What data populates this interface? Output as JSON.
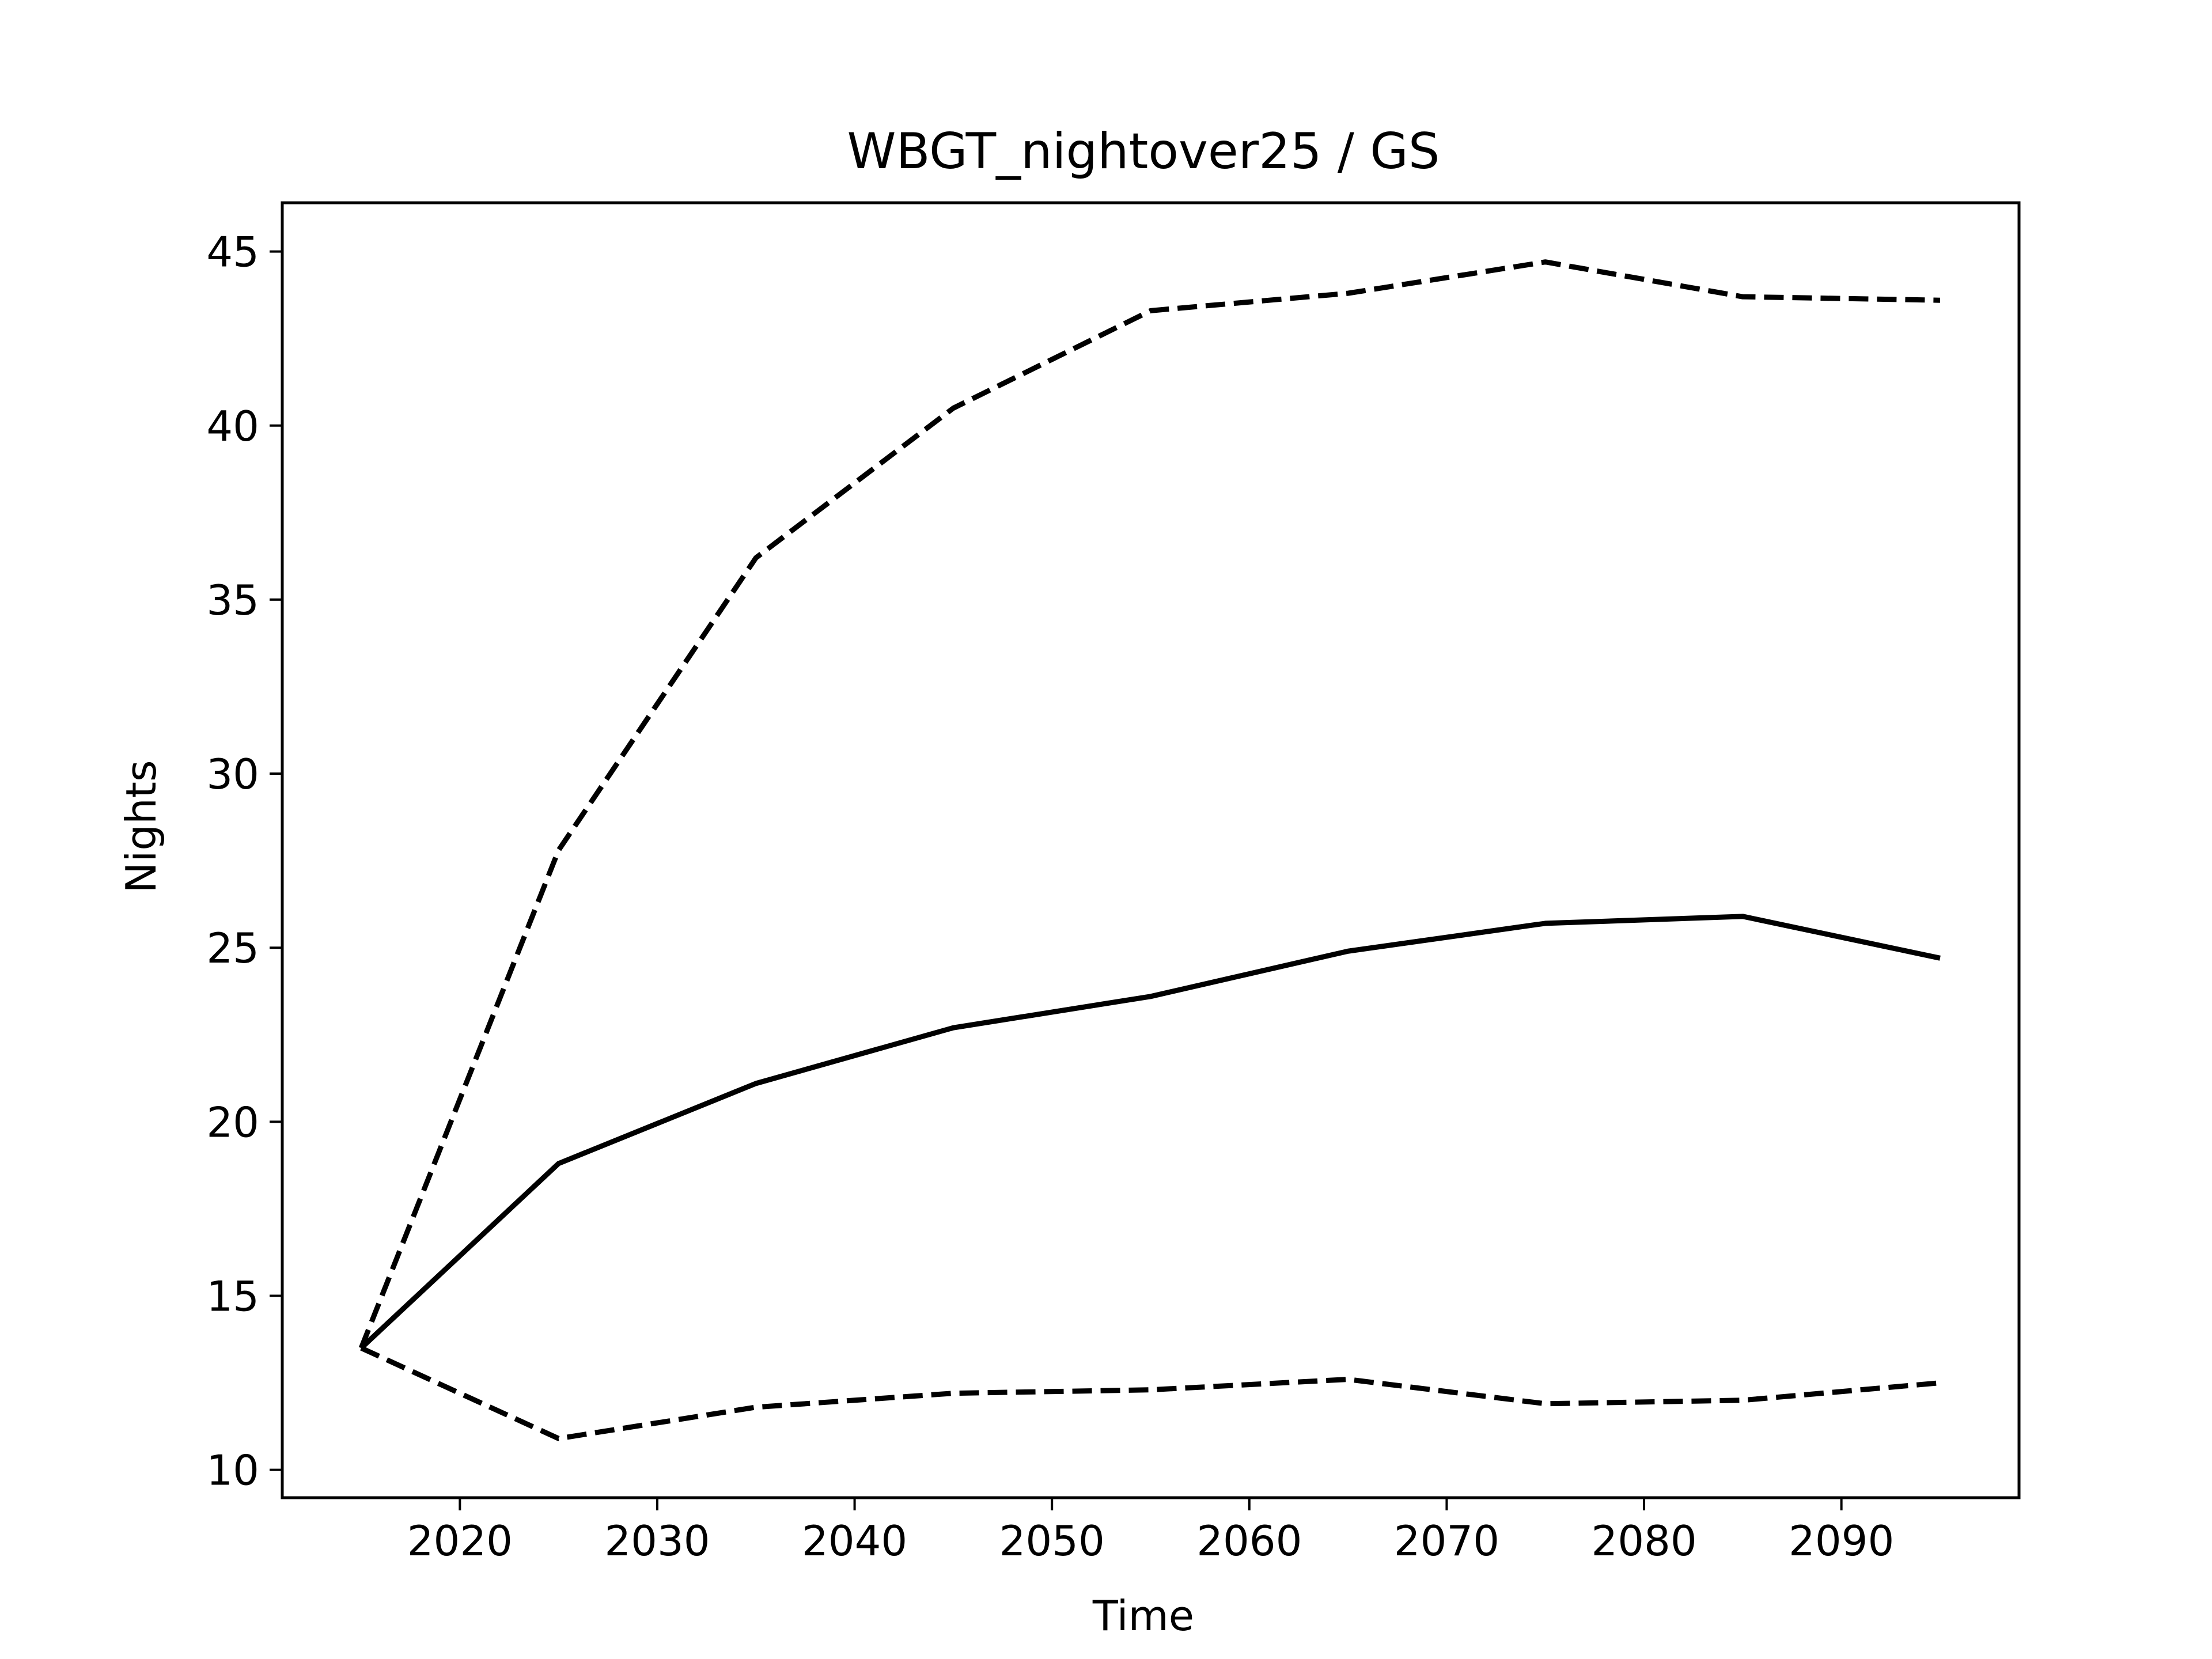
{
  "chart_data": {
    "type": "line",
    "title": "WBGT_nightover25 / GS",
    "xlabel": "Time",
    "ylabel": "Nights",
    "xlim": [
      2011,
      2099
    ],
    "ylim": [
      9.2,
      46.4
    ],
    "x_ticks": [
      2020,
      2030,
      2040,
      2050,
      2060,
      2070,
      2080,
      2090
    ],
    "y_ticks": [
      10,
      15,
      20,
      25,
      30,
      35,
      40,
      45
    ],
    "grid": false,
    "legend": "none",
    "x": [
      2015,
      2025,
      2035,
      2045,
      2055,
      2065,
      2075,
      2085,
      2095
    ],
    "series": [
      {
        "style": "dashed",
        "color": "#000000",
        "values": [
          13.5,
          27.8,
          36.2,
          40.5,
          43.3,
          43.8,
          44.7,
          43.7,
          43.6
        ]
      },
      {
        "style": "solid",
        "color": "#000000",
        "values": [
          13.5,
          18.8,
          21.1,
          22.7,
          23.6,
          24.9,
          25.7,
          25.9,
          24.7
        ]
      },
      {
        "style": "dashed",
        "color": "#000000",
        "values": [
          13.5,
          10.9,
          11.8,
          12.2,
          12.3,
          12.6,
          11.9,
          12.0,
          12.5
        ]
      }
    ]
  }
}
